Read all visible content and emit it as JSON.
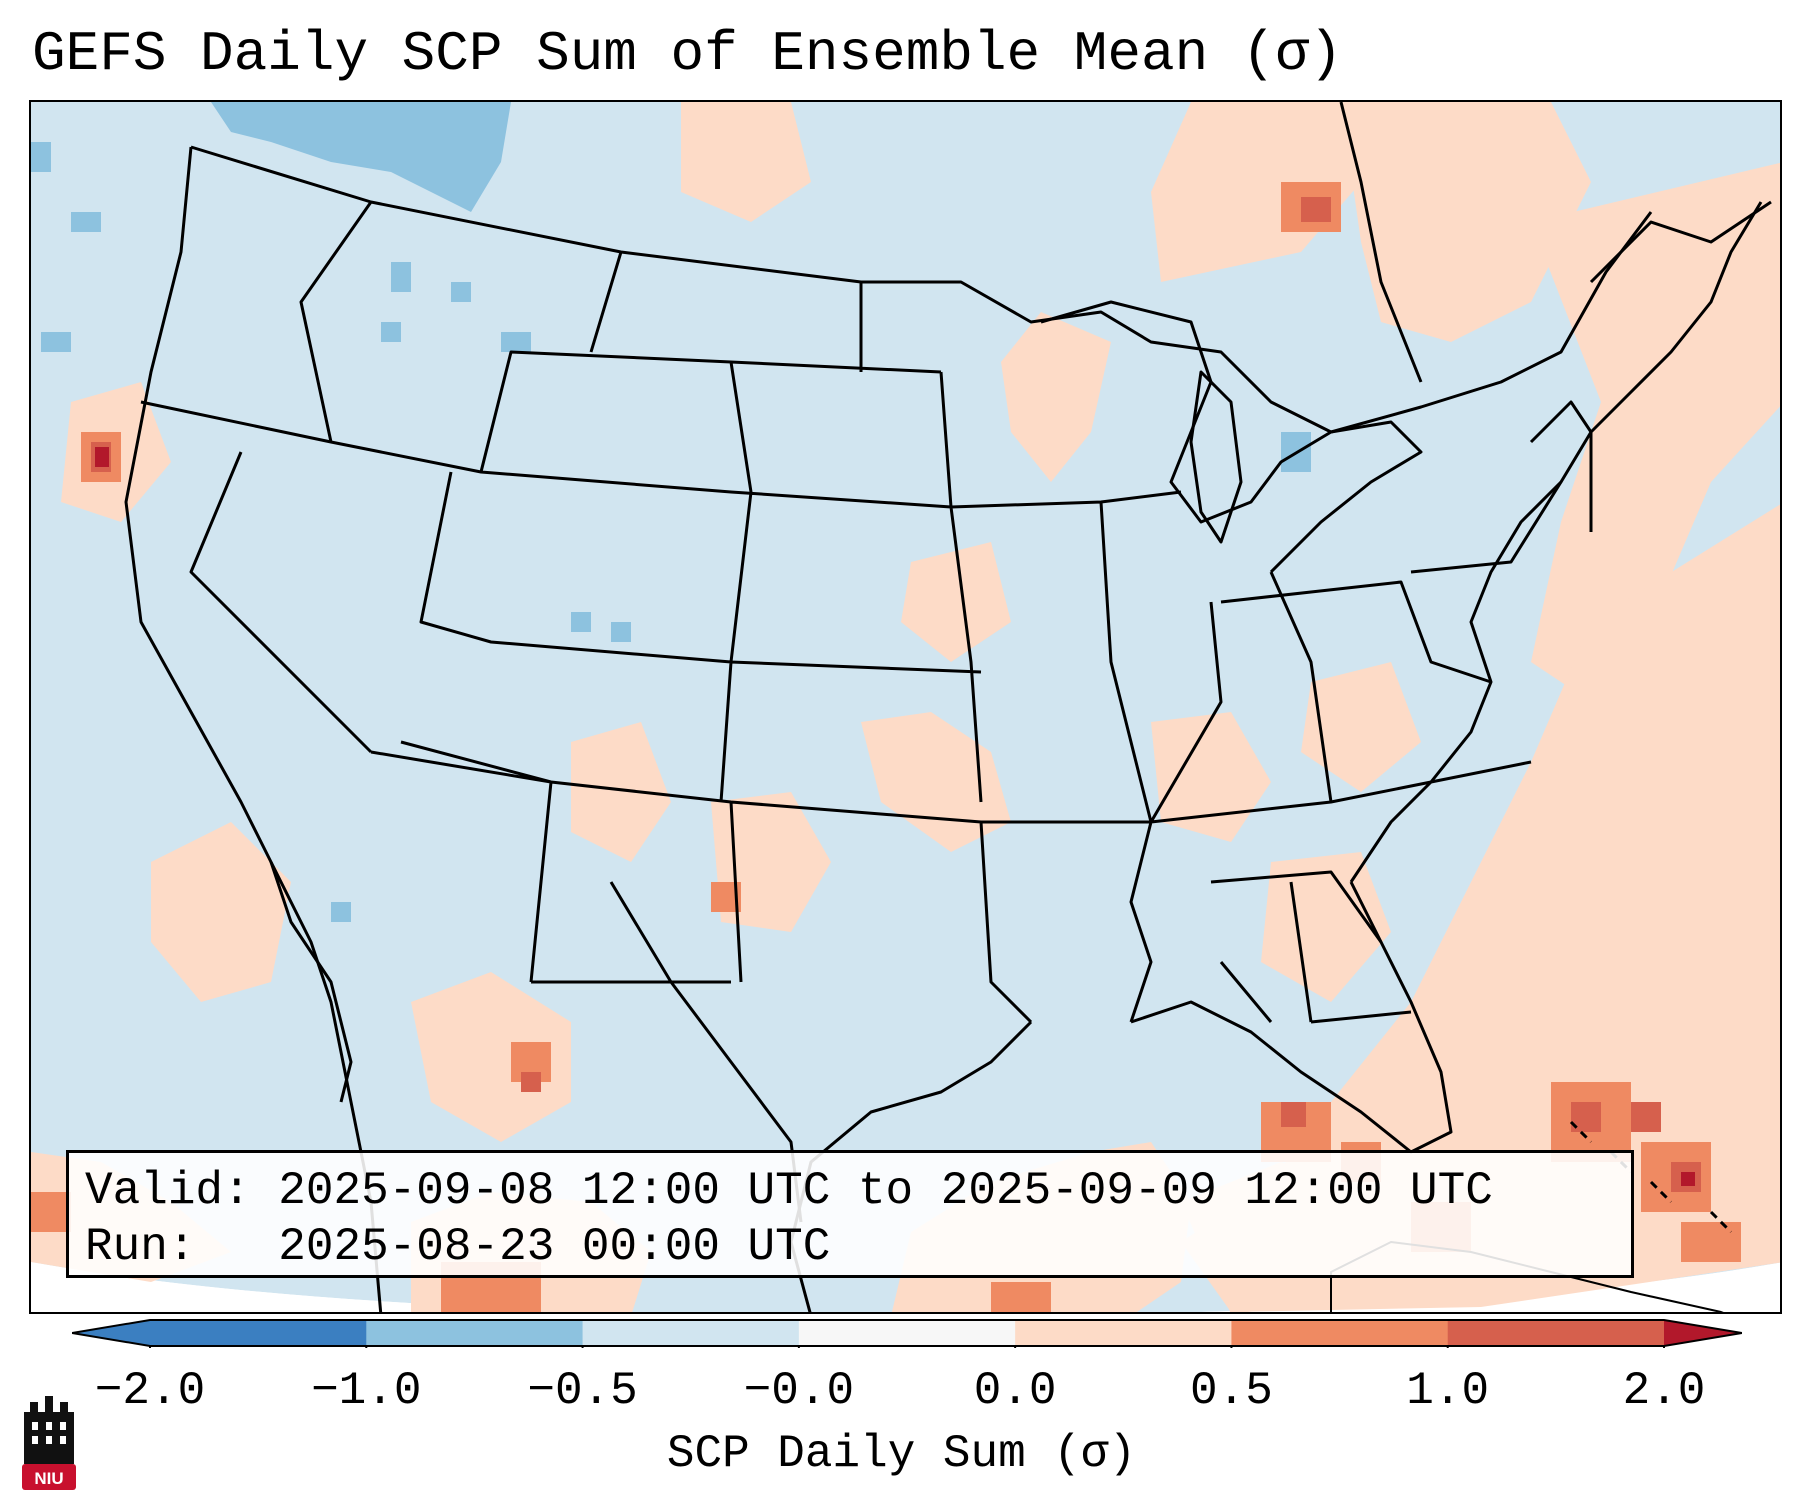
{
  "title": "GEFS Daily SCP Sum of Ensemble Mean (σ)",
  "info": {
    "valid_label": "Valid:",
    "valid_value": "2025-09-08 12:00 UTC to 2025-09-09 12:00 UTC",
    "run_label": "Run:",
    "run_value": "2025-08-23 00:00 UTC"
  },
  "colorbar": {
    "label": "SCP Daily Sum (σ)",
    "ticks": [
      "−2.0",
      "−1.0",
      "−0.5",
      "−0.0",
      "0.0",
      "0.5",
      "1.0",
      "2.0"
    ],
    "colors": [
      "#3b7fc1",
      "#8dc2df",
      "#d1e5f0",
      "#f7f7f7",
      "#fddbc7",
      "#ef8a62",
      "#d6604d",
      "#b2182b"
    ]
  },
  "logo": {
    "text": "NIU"
  },
  "chart_data": {
    "type": "heatmap",
    "title": "GEFS Daily SCP Sum of Ensemble Mean (σ)",
    "variable": "SCP Daily Sum (σ)",
    "levels": [
      -2.0,
      -1.0,
      -0.5,
      -0.0,
      0.0,
      0.5,
      1.0,
      2.0
    ],
    "colors": [
      "#3b7fc1",
      "#8dc2df",
      "#d1e5f0",
      "#f7f7f7",
      "#fddbc7",
      "#ef8a62",
      "#d6604d",
      "#b2182b"
    ],
    "extend": "both",
    "valid": "2025-09-08 12:00 UTC to 2025-09-09 12:00 UTC",
    "run": "2025-08-23 00:00 UTC"
  }
}
